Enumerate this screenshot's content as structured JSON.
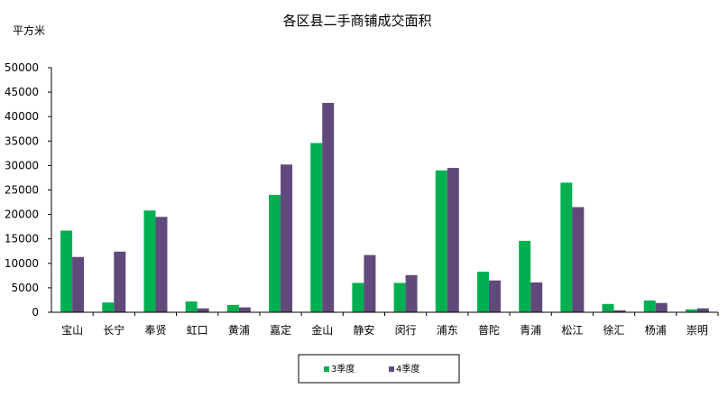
{
  "chart_data": {
    "type": "bar",
    "title": "各区县二手商铺成交面积",
    "ylabel": "平方米",
    "xlabel": "",
    "ylim": [
      0,
      50000
    ],
    "yticks": [
      0,
      5000,
      10000,
      15000,
      20000,
      25000,
      30000,
      35000,
      40000,
      45000,
      50000
    ],
    "grid": false,
    "legend_position": "bottom-center",
    "categories": [
      "宝山",
      "长宁",
      "奉贤",
      "虹口",
      "黄浦",
      "嘉定",
      "金山",
      "静安",
      "闵行",
      "浦东",
      "普陀",
      "青浦",
      "松江",
      "徐汇",
      "杨浦",
      "崇明"
    ],
    "series": [
      {
        "name": "3季度",
        "color": "#00B050",
        "values": [
          16700,
          2000,
          20800,
          2200,
          1500,
          24000,
          34600,
          6000,
          6000,
          29000,
          8300,
          14600,
          26500,
          1700,
          2400,
          600
        ]
      },
      {
        "name": "4季度",
        "color": "#604A7B",
        "values": [
          11300,
          12400,
          19500,
          800,
          1000,
          30200,
          42800,
          11700,
          7600,
          29500,
          6500,
          6100,
          21500,
          400,
          1900,
          800
        ]
      }
    ]
  }
}
